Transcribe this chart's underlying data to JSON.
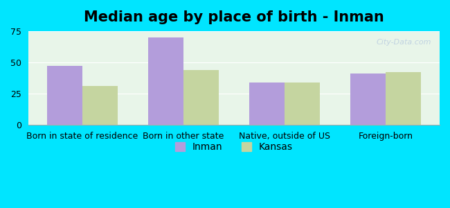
{
  "title": "Median age by place of birth - Inman",
  "categories": [
    "Born in state of residence",
    "Born in other state",
    "Native, outside of US",
    "Foreign-born"
  ],
  "inman_values": [
    47,
    70,
    34,
    41
  ],
  "kansas_values": [
    31,
    44,
    34,
    42
  ],
  "inman_color": "#b39ddb",
  "kansas_color": "#c5d5a0",
  "background_color": "#e8f5e9",
  "outer_background": "#00e5ff",
  "ylim": [
    0,
    75
  ],
  "yticks": [
    0,
    25,
    50,
    75
  ],
  "legend_labels": [
    "Inman",
    "Kansas"
  ],
  "bar_width": 0.35,
  "title_fontsize": 15,
  "tick_fontsize": 9,
  "legend_fontsize": 10
}
